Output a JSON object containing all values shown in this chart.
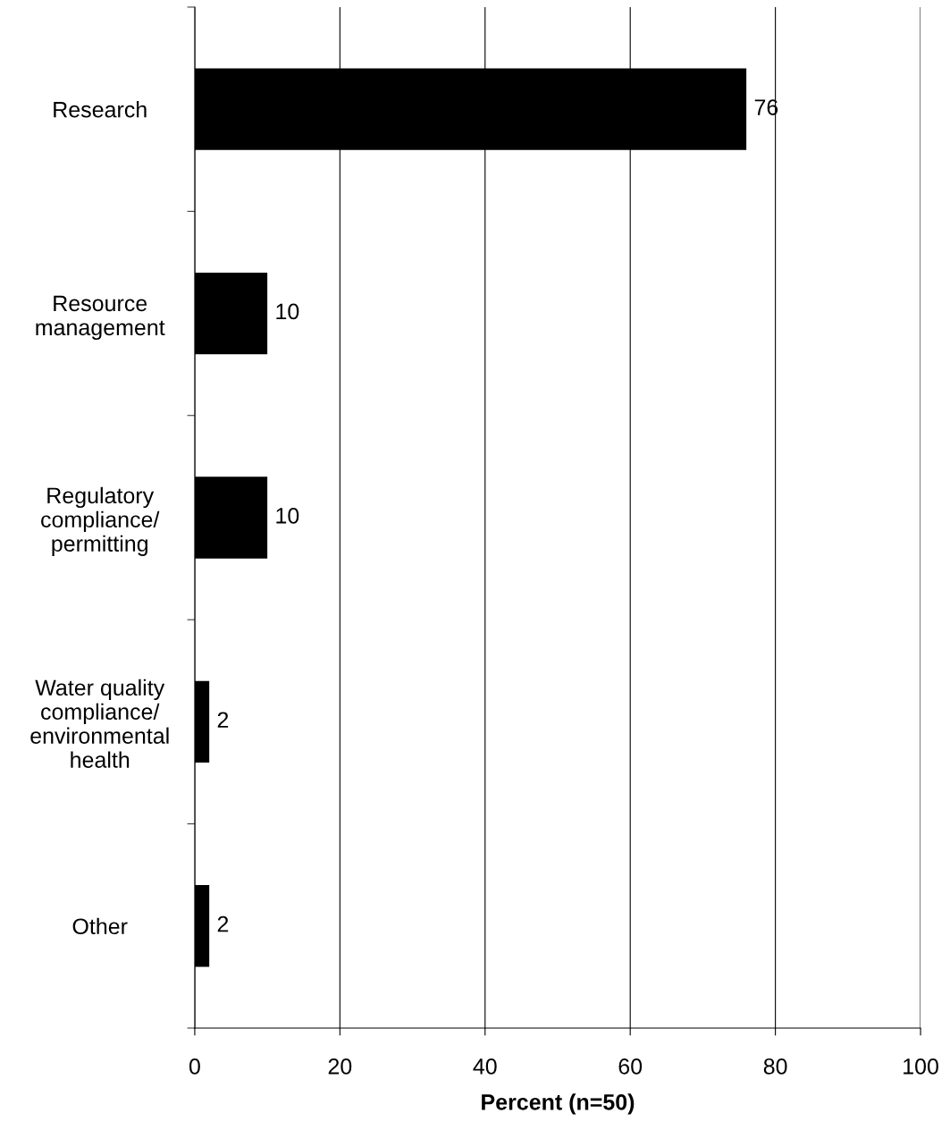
{
  "chart_data": {
    "type": "bar",
    "orientation": "horizontal",
    "xlabel": "Percent (n=50)",
    "categories": [
      "Research",
      "Resource\nmanagement",
      "Regulatory\ncompliance/\npermitting",
      "Water quality\ncompliance/\nenvironmental\nhealth",
      "Other"
    ],
    "values": [
      76,
      10,
      10,
      2,
      2
    ],
    "color": "#000000",
    "xlim": [
      0,
      100
    ],
    "xticks": [
      0,
      20,
      40,
      60,
      80,
      100
    ],
    "grid": "x",
    "data_labels": true,
    "legend": false
  }
}
